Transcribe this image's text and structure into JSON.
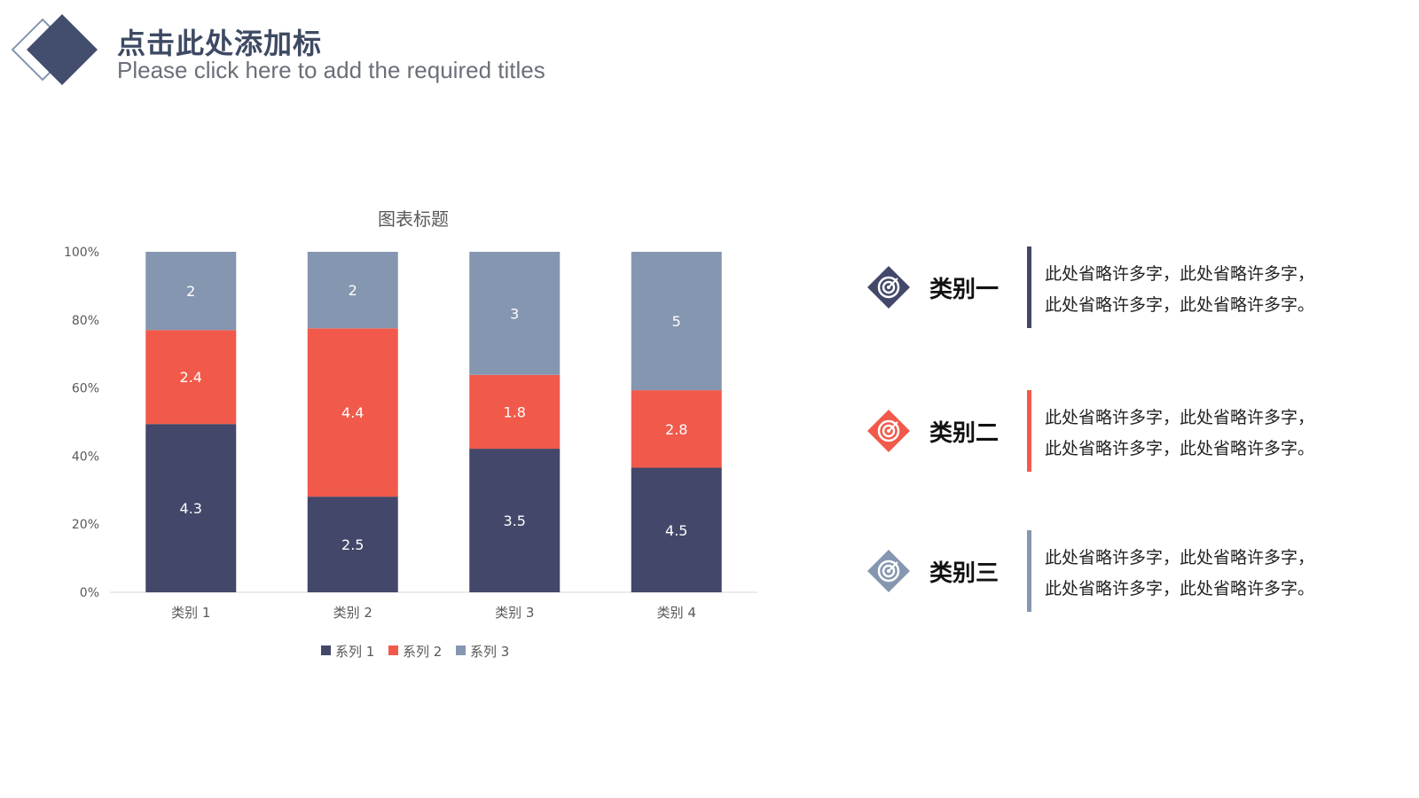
{
  "header": {
    "title": "点击此处添加标",
    "subtitle": "Please click here to add the required titles"
  },
  "colors": {
    "series1": "#434769",
    "series2": "#f15a4a",
    "series3": "#8596b0",
    "title": "#3e4a63",
    "axis_text": "#595959"
  },
  "chart_data": {
    "type": "bar",
    "stacked": "percent",
    "title": "图表标题",
    "categories": [
      "类别 1",
      "类别 2",
      "类别 3",
      "类别 4"
    ],
    "series": [
      {
        "name": "系列 1",
        "values": [
          4.3,
          2.5,
          3.5,
          4.5
        ]
      },
      {
        "name": "系列 2",
        "values": [
          2.4,
          4.4,
          1.8,
          2.8
        ]
      },
      {
        "name": "系列 3",
        "values": [
          2,
          2,
          3,
          5
        ]
      }
    ],
    "yticks": [
      "0%",
      "20%",
      "40%",
      "60%",
      "80%",
      "100%"
    ],
    "ylim": [
      0,
      100
    ],
    "legend": "bottom",
    "grid": false
  },
  "categories_panel": [
    {
      "label": "类别一",
      "icon": "target-icon",
      "color": "#434769",
      "text": [
        "此处省略许多字，此处省略许多字，",
        "此处省略许多字，此处省略许多字。"
      ]
    },
    {
      "label": "类别二",
      "icon": "target-icon",
      "color": "#f15a4a",
      "text": [
        "此处省略许多字，此处省略许多字，",
        "此处省略许多字，此处省略许多字。"
      ]
    },
    {
      "label": "类别三",
      "icon": "target-icon",
      "color": "#8596b0",
      "text": [
        "此处省略许多字，此处省略许多字，",
        "此处省略许多字，此处省略许多字。"
      ]
    }
  ]
}
